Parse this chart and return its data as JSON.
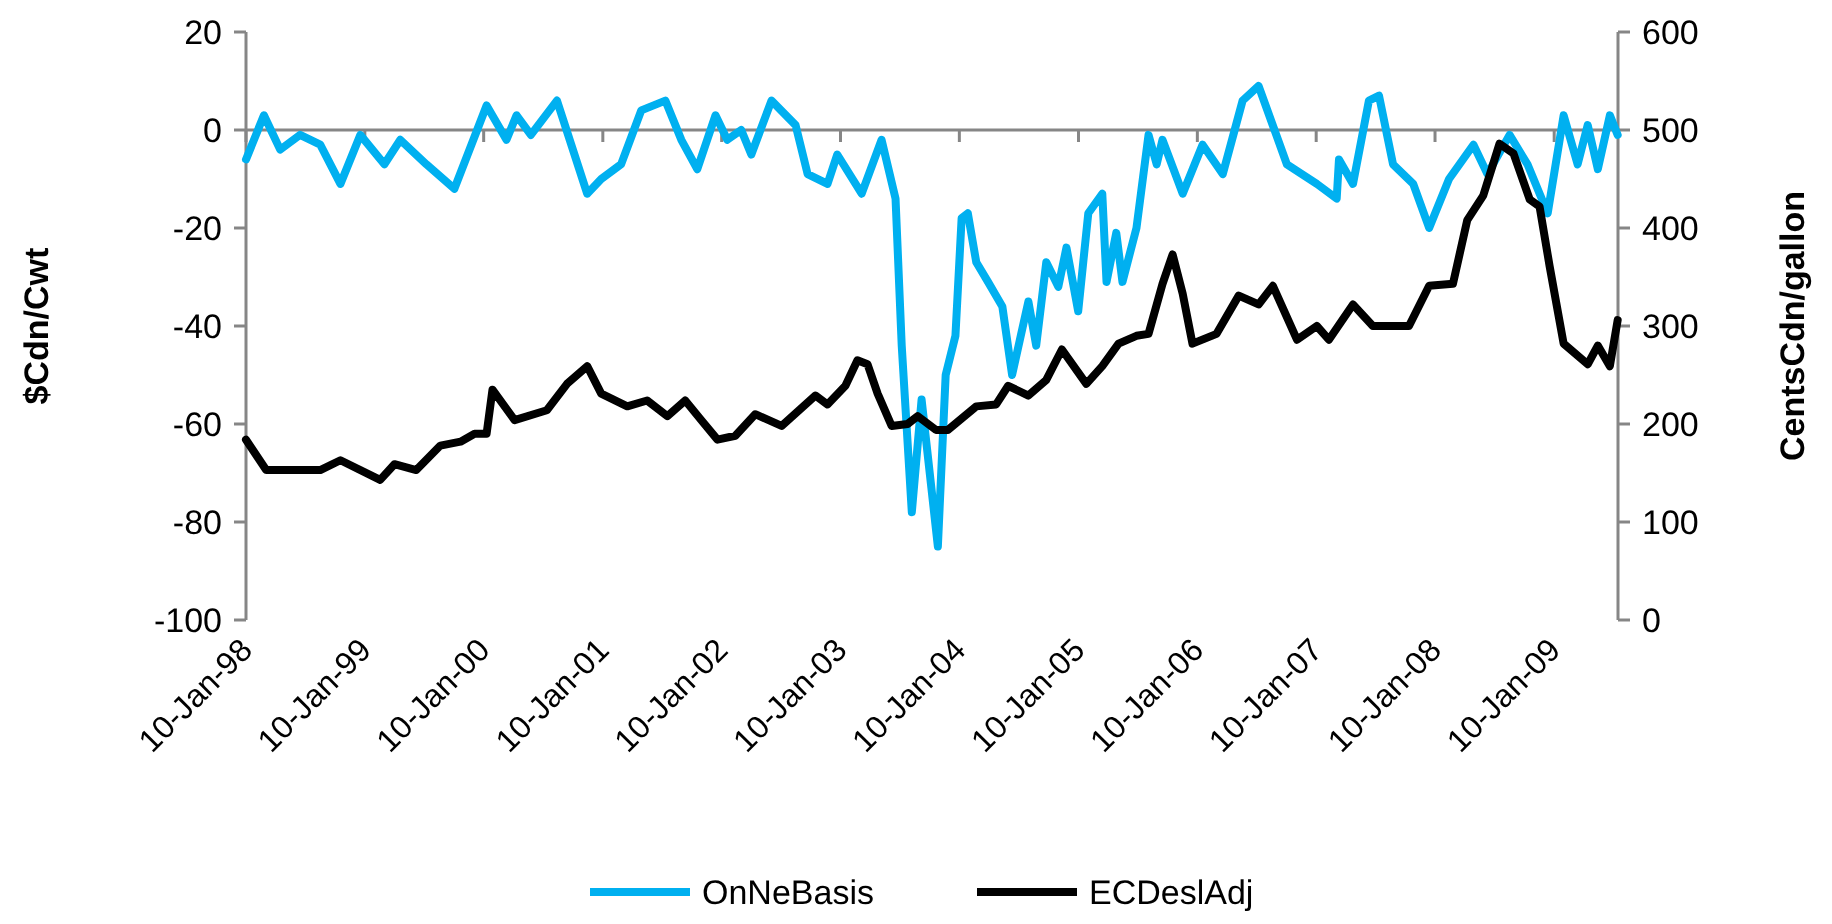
{
  "chart_data": {
    "type": "line",
    "ylabel": "$Cdn/Cwt",
    "y2label": "CentsCdn/gallon",
    "legend": "bottom",
    "xlim": [
      "1998-01-10",
      "2009-07-25"
    ],
    "xticks": [
      {
        "value": "1998-01-10",
        "label": "10-Jan-98"
      },
      {
        "value": "1999-01-10",
        "label": "10-Jan-99"
      },
      {
        "value": "2000-01-10",
        "label": "10-Jan-00"
      },
      {
        "value": "2001-01-10",
        "label": "10-Jan-01"
      },
      {
        "value": "2002-01-10",
        "label": "10-Jan-02"
      },
      {
        "value": "2003-01-10",
        "label": "10-Jan-03"
      },
      {
        "value": "2004-01-10",
        "label": "10-Jan-04"
      },
      {
        "value": "2005-01-10",
        "label": "10-Jan-05"
      },
      {
        "value": "2006-01-10",
        "label": "10-Jan-06"
      },
      {
        "value": "2007-01-10",
        "label": "10-Jan-07"
      },
      {
        "value": "2008-01-10",
        "label": "10-Jan-08"
      },
      {
        "value": "2009-01-10",
        "label": "10-Jan-09"
      }
    ],
    "ylim": [
      -100,
      20
    ],
    "yticks": [
      -100,
      -80,
      -60,
      -40,
      -20,
      0,
      20
    ],
    "y2lim": [
      0,
      600
    ],
    "y2ticks": [
      0,
      100,
      200,
      300,
      400,
      500,
      600
    ],
    "series": [
      {
        "name": "OnNeBasis",
        "color": "#00b0f0",
        "x": [
          "1998-01-10",
          "1998-03-06",
          "1998-04-25",
          "1998-06-25",
          "1998-08-26",
          "1998-10-27",
          "1998-12-27",
          "1999-03-11",
          "1999-04-29",
          "1999-07-18",
          "1999-10-12",
          "2000-01-19",
          "2000-03-20",
          "2000-04-20",
          "2000-06-03",
          "2000-08-22",
          "2000-11-23",
          "2001-01-05",
          "2001-03-07",
          "2001-05-08",
          "2001-07-21",
          "2001-09-08",
          "2001-10-27",
          "2001-12-22",
          "2002-01-27",
          "2002-03-11",
          "2002-04-11",
          "2002-06-12",
          "2002-08-25",
          "2002-10-01",
          "2002-12-01",
          "2002-12-31",
          "2003-03-16",
          "2003-05-16",
          "2003-06-28",
          "2003-07-17",
          "2003-08-17",
          "2003-09-16",
          "2003-11-05",
          "2003-11-29",
          "2003-12-29",
          "2004-01-17",
          "2004-02-05",
          "2004-03-02",
          "2004-04-07",
          "2004-05-21",
          "2004-06-20",
          "2004-08-09",
          "2004-09-02",
          "2004-10-03",
          "2004-11-09",
          "2004-12-04",
          "2005-01-09",
          "2005-02-09",
          "2005-03-24",
          "2005-04-06",
          "2005-05-06",
          "2005-05-25",
          "2005-07-07",
          "2005-08-13",
          "2005-09-07",
          "2005-09-25",
          "2005-11-26",
          "2006-01-26",
          "2006-03-29",
          "2006-05-29",
          "2006-07-17",
          "2006-10-12",
          "2007-01-12",
          "2007-03-14",
          "2007-03-21",
          "2007-05-03",
          "2007-06-21",
          "2007-07-22",
          "2007-09-03",
          "2007-11-04",
          "2007-12-23",
          "2008-02-22",
          "2008-05-07",
          "2008-06-19",
          "2008-08-26",
          "2008-10-20",
          "2008-12-21",
          "2009-02-08",
          "2009-03-23",
          "2009-04-23",
          "2009-05-24",
          "2009-06-30",
          "2009-07-24"
        ],
        "values": [
          -6,
          3,
          -4,
          -1,
          -3,
          -11,
          -1,
          -7,
          -2,
          -7,
          -12,
          5,
          -2,
          3,
          -1,
          6,
          -13,
          -10,
          -7,
          4,
          6,
          -2,
          -8,
          3,
          -2,
          0,
          -5,
          6,
          1,
          -9,
          -11,
          -5,
          -13,
          -2,
          -14,
          -44,
          -78,
          -55,
          -85,
          -50,
          -42,
          -18,
          -17,
          -27,
          -31,
          -36,
          -50,
          -35,
          -44,
          -27,
          -32,
          -24,
          -37,
          -17,
          -13,
          -31,
          -21,
          -31,
          -20,
          -1,
          -7,
          -2,
          -13,
          -3,
          -9,
          6,
          9,
          -7,
          -11,
          -14,
          -6,
          -11,
          6,
          7,
          -7,
          -11,
          -20,
          -10,
          -3,
          -9,
          -1,
          -7,
          -17,
          3,
          -7,
          1,
          -8,
          3,
          -1
        ]
      },
      {
        "name": "ECDeslAdj",
        "color": "#000000",
        "axis": "y2",
        "x": [
          "1998-01-10",
          "1998-03-13",
          "1998-08-26",
          "1998-10-27",
          "1999-02-26",
          "1999-04-11",
          "1999-06-17",
          "1999-08-30",
          "1999-10-31",
          "1999-12-13",
          "2000-01-19",
          "2000-02-06",
          "2000-04-14",
          "2000-07-22",
          "2000-09-22",
          "2000-11-23",
          "2001-01-05",
          "2001-03-26",
          "2001-05-26",
          "2001-07-27",
          "2001-09-20",
          "2001-11-08",
          "2001-12-28",
          "2002-02-21",
          "2002-04-23",
          "2002-07-13",
          "2002-10-25",
          "2002-12-01",
          "2003-01-25",
          "2003-03-03",
          "2003-04-03",
          "2003-05-04",
          "2003-06-16",
          "2003-08-04",
          "2003-09-04",
          "2003-10-30",
          "2003-12-06",
          "2004-03-02",
          "2004-05-02",
          "2004-06-08",
          "2004-08-09",
          "2004-10-03",
          "2004-11-20",
          "2005-02-03",
          "2005-03-24",
          "2005-05-13",
          "2005-07-07",
          "2005-08-13",
          "2005-09-25",
          "2005-10-26",
          "2005-11-26",
          "2005-12-26",
          "2006-03-10",
          "2006-05-17",
          "2006-07-17",
          "2006-08-30",
          "2006-11-12",
          "2007-01-12",
          "2007-02-18",
          "2007-05-03",
          "2007-07-03",
          "2007-10-22",
          "2007-12-23",
          "2008-03-05",
          "2008-04-18",
          "2008-06-06",
          "2008-07-26",
          "2008-09-07",
          "2008-10-27",
          "2008-11-26",
          "2008-12-27",
          "2009-02-08",
          "2009-04-23",
          "2009-05-24",
          "2009-06-30",
          "2009-07-24"
        ],
        "values": [
          184,
          153,
          153,
          163,
          143,
          159,
          153,
          178,
          182,
          190,
          190,
          235,
          204,
          214,
          241,
          259,
          231,
          218,
          224,
          208,
          224,
          204,
          184,
          188,
          210,
          198,
          229,
          220,
          239,
          265,
          261,
          231,
          198,
          200,
          208,
          194,
          194,
          218,
          220,
          239,
          229,
          245,
          276,
          241,
          259,
          282,
          290,
          292,
          343,
          373,
          333,
          282,
          292,
          331,
          322,
          341,
          286,
          300,
          286,
          322,
          300,
          300,
          341,
          343,
          408,
          433,
          486,
          476,
          429,
          422,
          361,
          282,
          261,
          280,
          259,
          306
        ]
      }
    ]
  }
}
